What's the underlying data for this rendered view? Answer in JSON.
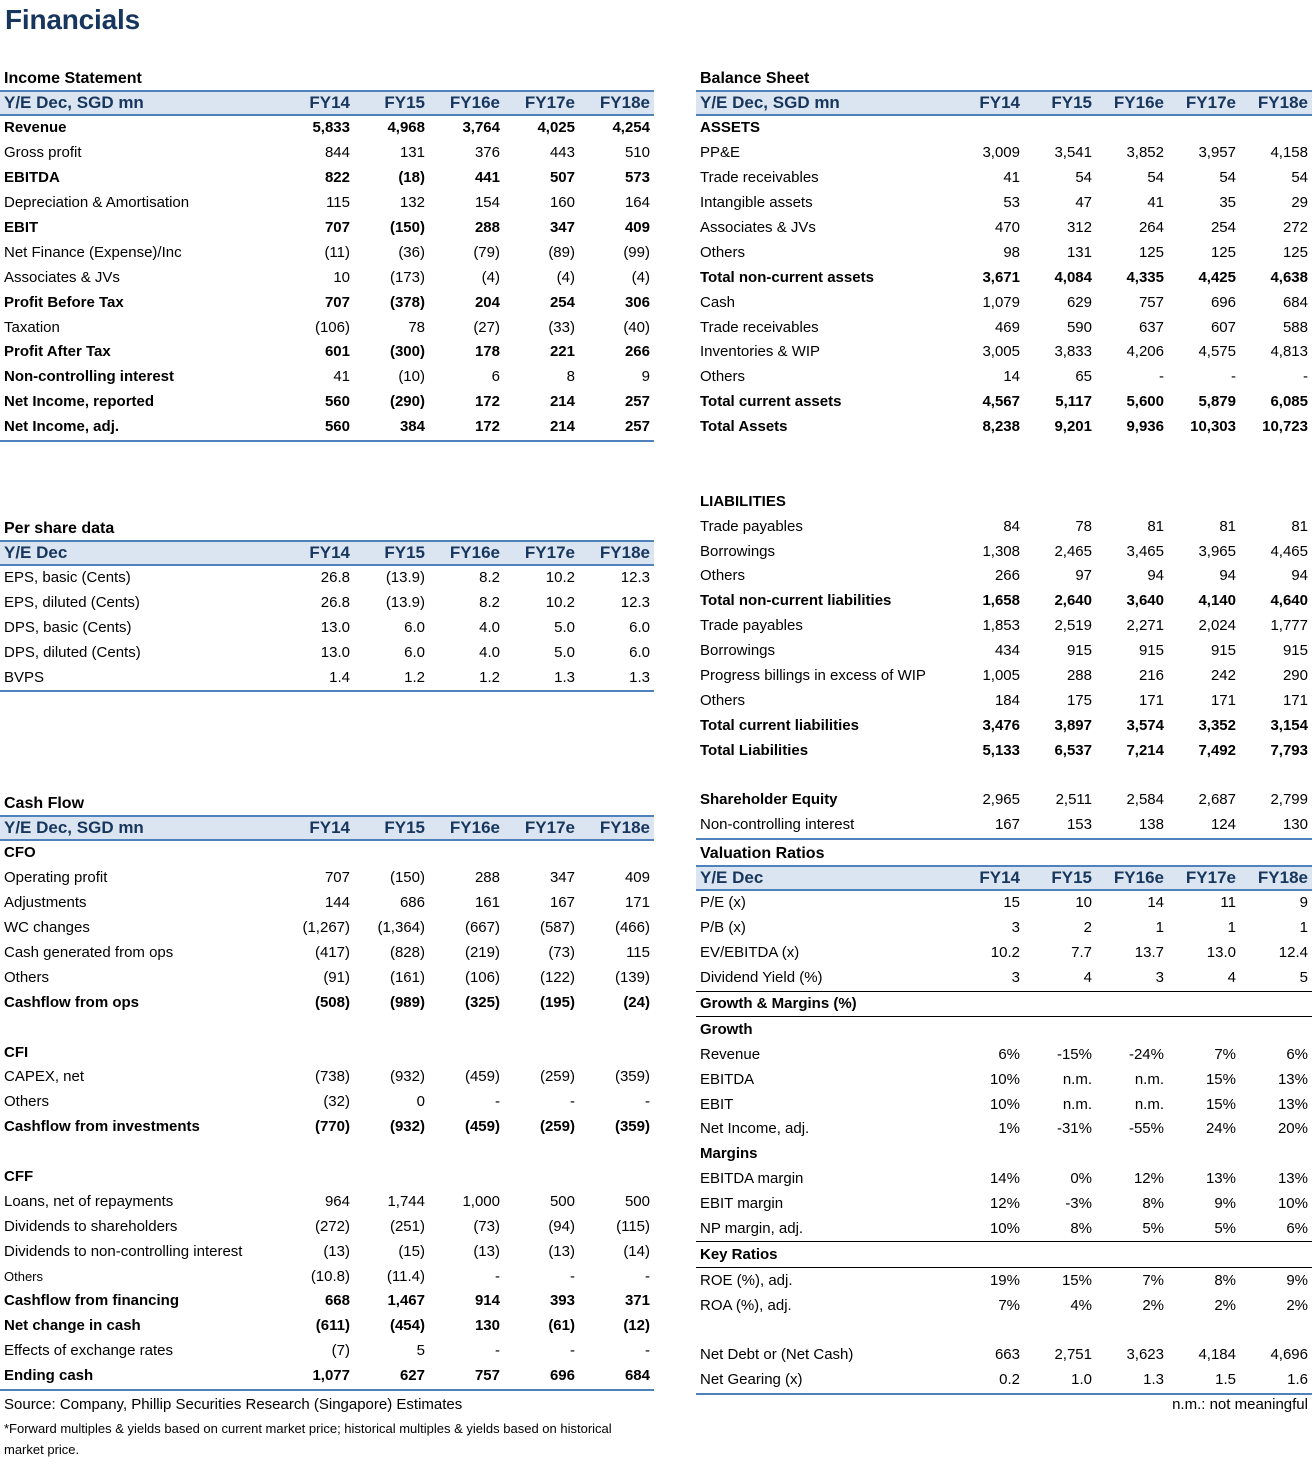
{
  "title": "Financials",
  "income": {
    "title": "Income Statement",
    "header": [
      "Y/E Dec, SGD mn",
      "FY14",
      "FY15",
      "FY16e",
      "FY17e",
      "FY18e"
    ],
    "rows": [
      {
        "label": "Revenue",
        "values": [
          "5,833",
          "4,968",
          "3,764",
          "4,025",
          "4,254"
        ],
        "style": "bold"
      },
      {
        "label": "Gross profit",
        "values": [
          "844",
          "131",
          "376",
          "443",
          "510"
        ]
      },
      {
        "label": "EBITDA",
        "values": [
          "822",
          "(18)",
          "441",
          "507",
          "573"
        ],
        "style": "bold"
      },
      {
        "label": "Depreciation & Amortisation",
        "values": [
          "115",
          "132",
          "154",
          "160",
          "164"
        ]
      },
      {
        "label": "EBIT",
        "values": [
          "707",
          "(150)",
          "288",
          "347",
          "409"
        ],
        "style": "bold"
      },
      {
        "label": "Net Finance (Expense)/Inc",
        "values": [
          "(11)",
          "(36)",
          "(79)",
          "(89)",
          "(99)"
        ]
      },
      {
        "label": "Associates & JVs",
        "values": [
          "10",
          "(173)",
          "(4)",
          "(4)",
          "(4)"
        ]
      },
      {
        "label": "Profit Before Tax",
        "values": [
          "707",
          "(378)",
          "204",
          "254",
          "306"
        ],
        "style": "bold"
      },
      {
        "label": "Taxation",
        "values": [
          "(106)",
          "78",
          "(27)",
          "(33)",
          "(40)"
        ]
      },
      {
        "label": "Profit After Tax",
        "values": [
          "601",
          "(300)",
          "178",
          "221",
          "266"
        ],
        "style": "bold"
      },
      {
        "label": "Non-controlling interest",
        "values": [
          "41",
          "(10)",
          "6",
          "8",
          "9"
        ],
        "style": "label-bold"
      },
      {
        "label": "Net Income, reported",
        "values": [
          "560",
          "(290)",
          "172",
          "214",
          "257"
        ],
        "style": "bold"
      },
      {
        "label": "Net Income, adj.",
        "values": [
          "560",
          "384",
          "172",
          "214",
          "257"
        ],
        "style": "bold bottom"
      }
    ]
  },
  "per_share": {
    "title": "Per share data",
    "header": [
      "Y/E Dec",
      "FY14",
      "FY15",
      "FY16e",
      "FY17e",
      "FY18e"
    ],
    "rows": [
      {
        "label": "EPS, basic (Cents)",
        "values": [
          "26.8",
          "(13.9)",
          "8.2",
          "10.2",
          "12.3"
        ]
      },
      {
        "label": "EPS, diluted (Cents)",
        "values": [
          "26.8",
          "(13.9)",
          "8.2",
          "10.2",
          "12.3"
        ]
      },
      {
        "label": "DPS, basic (Cents)",
        "values": [
          "13.0",
          "6.0",
          "4.0",
          "5.0",
          "6.0"
        ]
      },
      {
        "label": "DPS, diluted (Cents)",
        "values": [
          "13.0",
          "6.0",
          "4.0",
          "5.0",
          "6.0"
        ]
      },
      {
        "label": "BVPS",
        "values": [
          "1.4",
          "1.2",
          "1.2",
          "1.3",
          "1.3"
        ],
        "style": "bottom"
      }
    ]
  },
  "cash_flow": {
    "title": "Cash Flow",
    "header": [
      "Y/E Dec, SGD mn",
      "FY14",
      "FY15",
      "FY16e",
      "FY17e",
      "FY18e"
    ],
    "rows": [
      {
        "label": "CFO",
        "values": [
          "",
          "",
          "",
          "",
          ""
        ],
        "style": "sub"
      },
      {
        "label": "Operating profit",
        "values": [
          "707",
          "(150)",
          "288",
          "347",
          "409"
        ]
      },
      {
        "label": "Adjustments",
        "values": [
          "144",
          "686",
          "161",
          "167",
          "171"
        ]
      },
      {
        "label": "WC changes",
        "values": [
          "(1,267)",
          "(1,364)",
          "(667)",
          "(587)",
          "(466)"
        ]
      },
      {
        "label": "Cash generated from ops",
        "values": [
          "(417)",
          "(828)",
          "(219)",
          "(73)",
          "115"
        ]
      },
      {
        "label": "Others",
        "values": [
          "(91)",
          "(161)",
          "(106)",
          "(122)",
          "(139)"
        ]
      },
      {
        "label": "Cashflow from ops",
        "values": [
          "(508)",
          "(989)",
          "(325)",
          "(195)",
          "(24)"
        ],
        "style": "bold"
      },
      {
        "label": "",
        "values": [
          "",
          "",
          "",
          "",
          ""
        ]
      },
      {
        "label": "CFI",
        "values": [
          "",
          "",
          "",
          "",
          ""
        ],
        "style": "sub"
      },
      {
        "label": "CAPEX, net",
        "values": [
          "(738)",
          "(932)",
          "(459)",
          "(259)",
          "(359)"
        ]
      },
      {
        "label": "Others",
        "values": [
          "(32)",
          "0",
          "-",
          "-",
          "-"
        ]
      },
      {
        "label": "Cashflow from investments",
        "values": [
          "(770)",
          "(932)",
          "(459)",
          "(259)",
          "(359)"
        ],
        "style": "bold"
      },
      {
        "label": "",
        "values": [
          "",
          "",
          "",
          "",
          ""
        ]
      },
      {
        "label": "CFF",
        "values": [
          "",
          "",
          "",
          "",
          ""
        ],
        "style": "sub"
      },
      {
        "label": "Loans, net of repayments",
        "values": [
          "964",
          "1,744",
          "1,000",
          "500",
          "500"
        ]
      },
      {
        "label": "Dividends to shareholders",
        "values": [
          "(272)",
          "(251)",
          "(73)",
          "(94)",
          "(115)"
        ]
      },
      {
        "label": "Dividends to non-controlling interest",
        "values": [
          "(13)",
          "(15)",
          "(13)",
          "(13)",
          "(14)"
        ]
      },
      {
        "label": "Others",
        "values": [
          "(10.8)",
          "(11.4)",
          "-",
          "-",
          "-"
        ],
        "style": "small"
      },
      {
        "label": "Cashflow from financing",
        "values": [
          "668",
          "1,467",
          "914",
          "393",
          "371"
        ],
        "style": "bold"
      },
      {
        "label": "Net change in cash",
        "values": [
          "(611)",
          "(454)",
          "130",
          "(61)",
          "(12)"
        ],
        "style": "bold"
      },
      {
        "label": "Effects of exchange rates",
        "values": [
          "(7)",
          "5",
          "-",
          "-",
          "-"
        ]
      },
      {
        "label": "Ending cash",
        "values": [
          "1,077",
          "627",
          "757",
          "696",
          "684"
        ],
        "style": "bold bottom"
      }
    ]
  },
  "balance": {
    "title": "Balance Sheet",
    "header": [
      "Y/E Dec, SGD mn",
      "FY14",
      "FY15",
      "FY16e",
      "FY17e",
      "FY18e"
    ],
    "rows": [
      {
        "label": "ASSETS",
        "values": [
          "",
          "",
          "",
          "",
          ""
        ],
        "style": "sub"
      },
      {
        "label": "PP&E",
        "values": [
          "3,009",
          "3,541",
          "3,852",
          "3,957",
          "4,158"
        ]
      },
      {
        "label": "Trade receivables",
        "values": [
          "41",
          "54",
          "54",
          "54",
          "54"
        ]
      },
      {
        "label": "Intangible assets",
        "values": [
          "53",
          "47",
          "41",
          "35",
          "29"
        ]
      },
      {
        "label": "Associates & JVs",
        "values": [
          "470",
          "312",
          "264",
          "254",
          "272"
        ]
      },
      {
        "label": "Others",
        "values": [
          "98",
          "131",
          "125",
          "125",
          "125"
        ]
      },
      {
        "label": "Total non-current assets",
        "values": [
          "3,671",
          "4,084",
          "4,335",
          "4,425",
          "4,638"
        ],
        "style": "bold"
      },
      {
        "label": "Cash",
        "values": [
          "1,079",
          "629",
          "757",
          "696",
          "684"
        ]
      },
      {
        "label": "Trade receivables",
        "values": [
          "469",
          "590",
          "637",
          "607",
          "588"
        ]
      },
      {
        "label": "Inventories & WIP",
        "values": [
          "3,005",
          "3,833",
          "4,206",
          "4,575",
          "4,813"
        ]
      },
      {
        "label": "Others",
        "values": [
          "14",
          "65",
          "-",
          "-",
          "-"
        ]
      },
      {
        "label": "Total current assets",
        "values": [
          "4,567",
          "5,117",
          "5,600",
          "5,879",
          "6,085"
        ],
        "style": "bold"
      },
      {
        "label": "Total Assets",
        "values": [
          "8,238",
          "9,201",
          "9,936",
          "10,303",
          "10,723"
        ],
        "style": "bold"
      },
      {
        "label": "",
        "values": [
          "",
          "",
          "",
          "",
          ""
        ]
      },
      {
        "label": "",
        "values": [
          "",
          "",
          "",
          "",
          ""
        ]
      },
      {
        "label": "LIABILITIES",
        "values": [
          "",
          "",
          "",
          "",
          ""
        ],
        "style": "sub"
      },
      {
        "label": "Trade payables",
        "values": [
          "84",
          "78",
          "81",
          "81",
          "81"
        ]
      },
      {
        "label": "Borrowings",
        "values": [
          "1,308",
          "2,465",
          "3,465",
          "3,965",
          "4,465"
        ]
      },
      {
        "label": "Others",
        "values": [
          "266",
          "97",
          "94",
          "94",
          "94"
        ]
      },
      {
        "label": "Total non-current liabilities",
        "values": [
          "1,658",
          "2,640",
          "3,640",
          "4,140",
          "4,640"
        ],
        "style": "bold"
      },
      {
        "label": "Trade payables",
        "values": [
          "1,853",
          "2,519",
          "2,271",
          "2,024",
          "1,777"
        ]
      },
      {
        "label": "Borrowings",
        "values": [
          "434",
          "915",
          "915",
          "915",
          "915"
        ]
      },
      {
        "label": "Progress billings  in excess of WIP",
        "values": [
          "1,005",
          "288",
          "216",
          "242",
          "290"
        ]
      },
      {
        "label": "Others",
        "values": [
          "184",
          "175",
          "171",
          "171",
          "171"
        ]
      },
      {
        "label": "Total current liabilities",
        "values": [
          "3,476",
          "3,897",
          "3,574",
          "3,352",
          "3,154"
        ],
        "style": "bold"
      },
      {
        "label": "Total Liabilities",
        "values": [
          "5,133",
          "6,537",
          "7,214",
          "7,492",
          "7,793"
        ],
        "style": "bold"
      },
      {
        "label": "",
        "values": [
          "",
          "",
          "",
          "",
          ""
        ]
      },
      {
        "label": "Shareholder Equity",
        "values": [
          "2,965",
          "2,511",
          "2,584",
          "2,687",
          "2,799"
        ],
        "style": "label-bold"
      },
      {
        "label": "Non-controlling interest",
        "values": [
          "167",
          "153",
          "138",
          "124",
          "130"
        ],
        "style": "bottom"
      }
    ]
  },
  "valuation": {
    "title": "Valuation Ratios",
    "header": [
      "Y/E Dec",
      "FY14",
      "FY15",
      "FY16e",
      "FY17e",
      "FY18e"
    ],
    "rows": [
      {
        "label": "P/E (x)",
        "values": [
          "15",
          "10",
          "14",
          "11",
          "9"
        ]
      },
      {
        "label": "P/B (x)",
        "values": [
          "3",
          "2",
          "1",
          "1",
          "1"
        ]
      },
      {
        "label": "EV/EBITDA (x)",
        "values": [
          "10.2",
          "7.7",
          "13.7",
          "13.0",
          "12.4"
        ]
      },
      {
        "label": "Dividend Yield (%)",
        "values": [
          "3",
          "4",
          "3",
          "4",
          "5"
        ],
        "style": "botline"
      },
      {
        "label": "Growth & Margins (%)",
        "values": [
          "",
          "",
          "",
          "",
          ""
        ],
        "style": "sub botline"
      },
      {
        "label": "Growth",
        "values": [
          "",
          "",
          "",
          "",
          ""
        ],
        "style": "sub"
      },
      {
        "label": "Revenue",
        "values": [
          "6%",
          "-15%",
          "-24%",
          "7%",
          "6%"
        ]
      },
      {
        "label": "EBITDA",
        "values": [
          "10%",
          "n.m.",
          "n.m.",
          "15%",
          "13%"
        ]
      },
      {
        "label": "EBIT",
        "values": [
          "10%",
          "n.m.",
          "n.m.",
          "15%",
          "13%"
        ]
      },
      {
        "label": "Net Income, adj.",
        "values": [
          "1%",
          "-31%",
          "-55%",
          "24%",
          "20%"
        ]
      },
      {
        "label": "Margins",
        "values": [
          "",
          "",
          "",
          "",
          ""
        ],
        "style": "sub"
      },
      {
        "label": "EBITDA margin",
        "values": [
          "14%",
          "0%",
          "12%",
          "13%",
          "13%"
        ]
      },
      {
        "label": "EBIT margin",
        "values": [
          "12%",
          "-3%",
          "8%",
          "9%",
          "10%"
        ]
      },
      {
        "label": "NP margin, adj.",
        "values": [
          "10%",
          "8%",
          "5%",
          "5%",
          "6%"
        ],
        "style": "botline"
      },
      {
        "label": "Key Ratios",
        "values": [
          "",
          "",
          "",
          "",
          ""
        ],
        "style": "sub botline"
      },
      {
        "label": "ROE (%), adj.",
        "values": [
          "19%",
          "15%",
          "7%",
          "8%",
          "9%"
        ]
      },
      {
        "label": "ROA (%), adj.",
        "values": [
          "7%",
          "4%",
          "2%",
          "2%",
          "2%"
        ]
      },
      {
        "label": "",
        "values": [
          "",
          "",
          "",
          "",
          ""
        ]
      },
      {
        "label": "Net Debt or (Net Cash)",
        "values": [
          "663",
          "2,751",
          "3,623",
          "4,184",
          "4,696"
        ]
      },
      {
        "label": "Net Gearing (x)",
        "values": [
          "0.2",
          "1.0",
          "1.3",
          "1.5",
          "1.6"
        ],
        "style": "bottom"
      }
    ]
  },
  "footer": {
    "source": "Source: Company, Phillip Securities Research (Singapore) Estimates",
    "note": "*Forward multiples & yields based on current market price; historical multiples & yields based on historical market price.",
    "nm": "n.m.: not meaningful"
  }
}
